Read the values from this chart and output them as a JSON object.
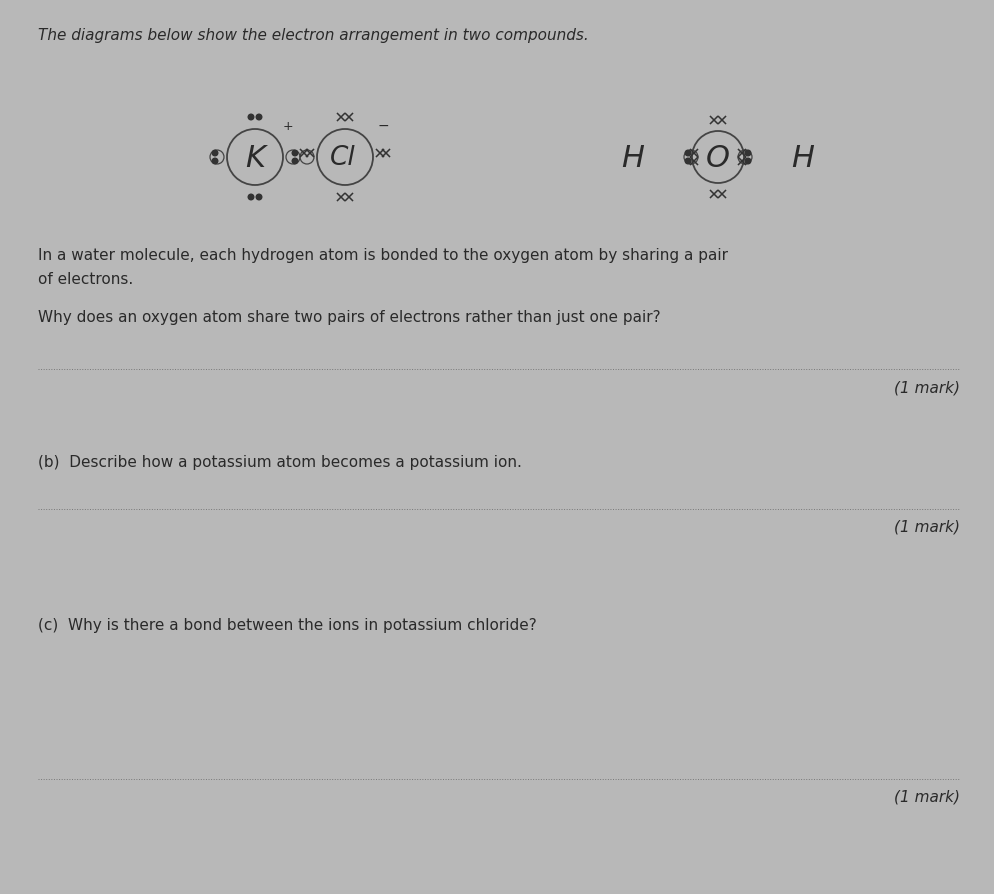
{
  "bg_color": "#b8b8b8",
  "text_color": "#2a2a2a",
  "title": "The diagrams below show the electron arrangement in two compounds.",
  "title_fontsize": 11.0,
  "intro_line1": "In a water molecule, each hydrogen atom is bonded to the oxygen atom by sharing a pair",
  "intro_line2": "of electrons.",
  "question_a": "Why does an oxygen atom share two pairs of electrons rather than just one pair?",
  "question_b_label": "(b)",
  "question_b_text": "Describe how a potassium atom becomes a potassium ion.",
  "question_c_label": "(c)",
  "question_c_text": "Why is there a bond between the ions in potassium chloride?",
  "mark_text": "(1 mark)",
  "question_fontsize": 11.0,
  "mark_fontsize": 11.0,
  "electron_color": "#333333",
  "circle_color": "#444444"
}
